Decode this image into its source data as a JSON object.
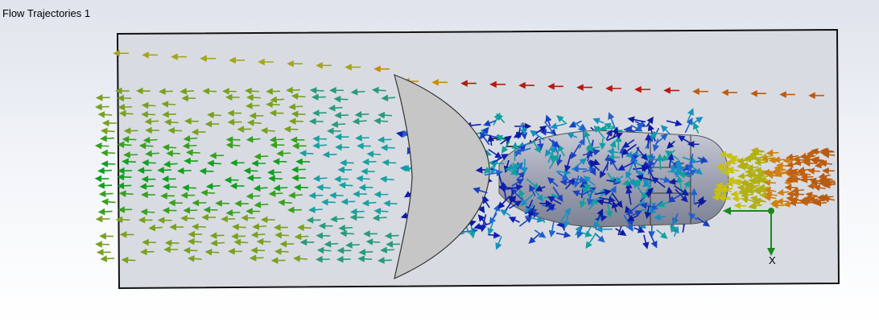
{
  "header": {
    "title": "Flow Trajectories 1"
  },
  "triad": {
    "x_label": "X"
  }
}
